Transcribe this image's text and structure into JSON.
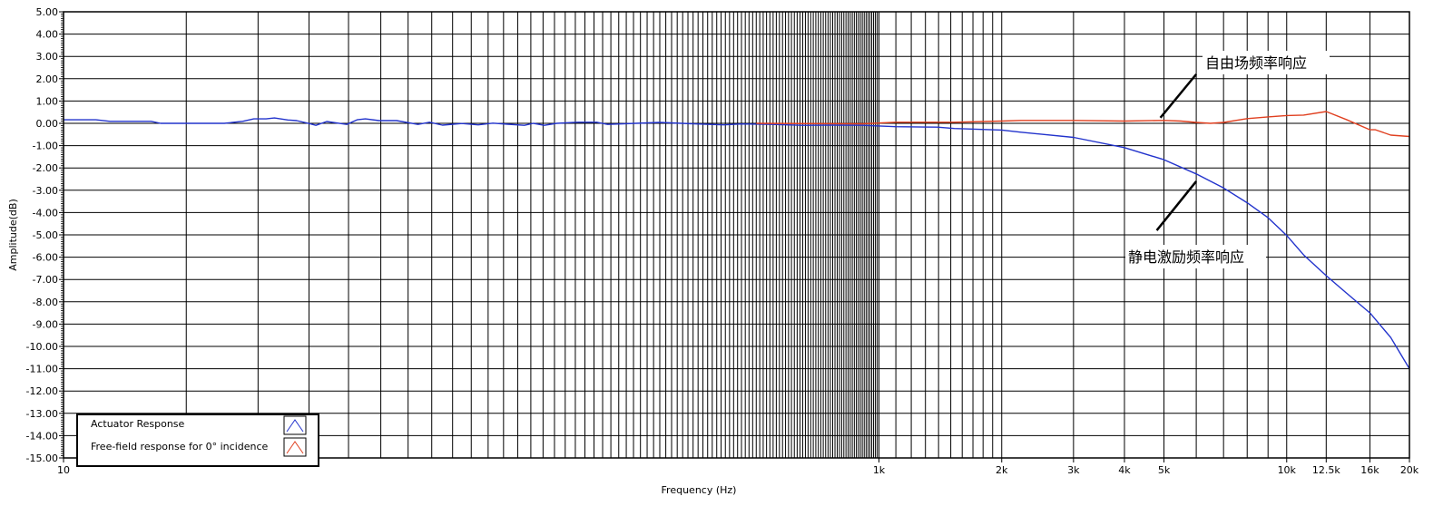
{
  "chart_data": {
    "type": "line",
    "xlabel": "Frequency (Hz)",
    "ylabel": "Amplitude(dB)",
    "x_scale": "log",
    "xlim": [
      10,
      20000
    ],
    "ylim": [
      -15,
      5
    ],
    "grid": true,
    "legend_placement": "bottom-left",
    "x_ticks": [
      {
        "value": 10,
        "label": "10"
      },
      {
        "value": 1000,
        "label": "1k"
      },
      {
        "value": 2000,
        "label": "2k"
      },
      {
        "value": 3000,
        "label": "3k"
      },
      {
        "value": 4000,
        "label": "4k"
      },
      {
        "value": 5000,
        "label": "5k"
      },
      {
        "value": 10000,
        "label": "10k"
      },
      {
        "value": 12500,
        "label": "12.5k"
      },
      {
        "value": 16000,
        "label": "16k"
      },
      {
        "value": 20000,
        "label": "20k"
      }
    ],
    "y_ticks": [
      "5.00",
      "4.00",
      "3.00",
      "2.00",
      "1.00",
      "0.00",
      "-1.00",
      "-2.00",
      "-3.00",
      "-4.00",
      "-5.00",
      "-6.00",
      "-7.00",
      "-8.00",
      "-9.00",
      "-10.00",
      "-11.00",
      "-12.00",
      "-13.00",
      "-14.00",
      "-15.00"
    ],
    "series": [
      {
        "name": "Actuator Response",
        "color": "#2233cc",
        "x": [
          10,
          12,
          13,
          16.4,
          17.3,
          24.8,
          27.5,
          29.3,
          31.4,
          32.9,
          35.5,
          37.3,
          40,
          41.6,
          44.2,
          49.5,
          52.5,
          55,
          59.4,
          65.6,
          74,
          79,
          85,
          95,
          104,
          113,
          123,
          135,
          142,
          151,
          162,
          183,
          203,
          216,
          253,
          290,
          357,
          416,
          460,
          546,
          646,
          767,
          910,
          1100,
          1390,
          1530,
          2000,
          2230,
          3000,
          4000,
          5000,
          6000,
          7000,
          8000,
          9000,
          10000,
          11000,
          12500,
          14000,
          16000,
          18000,
          20000
        ],
        "y": [
          0.16,
          0.16,
          0.09,
          0.09,
          0,
          0,
          0.09,
          0.2,
          0.2,
          0.24,
          0.15,
          0.12,
          -0.01,
          -0.09,
          0.08,
          -0.05,
          0.16,
          0.2,
          0.12,
          0.12,
          -0.05,
          0.05,
          -0.08,
          -0.01,
          -0.07,
          0.01,
          -0.04,
          -0.09,
          0,
          -0.09,
          0,
          0.05,
          0.05,
          -0.05,
          0,
          0.04,
          -0.03,
          -0.07,
          -0.03,
          -0.05,
          -0.09,
          -0.08,
          -0.09,
          -0.15,
          -0.17,
          -0.23,
          -0.3,
          -0.4,
          -0.63,
          -1.09,
          -1.63,
          -2.27,
          -2.9,
          -3.56,
          -4.23,
          -5.03,
          -5.9,
          -6.83,
          -7.6,
          -8.5,
          -9.6,
          -11.0
        ]
      },
      {
        "name": "Free-field response for 0° incidence",
        "color": "#e04020",
        "x": [
          500,
          910,
          1100,
          1530,
          2000,
          2230,
          3000,
          4000,
          5000,
          5500,
          6000,
          6500,
          7000,
          8000,
          9000,
          10000,
          11000,
          12500,
          14000,
          16000,
          16500,
          18000,
          20000
        ],
        "y": [
          0,
          -0.02,
          0.05,
          0.05,
          0.1,
          0.13,
          0.13,
          0.1,
          0.13,
          0.1,
          0.04,
          0,
          0.04,
          0.21,
          0.29,
          0.35,
          0.37,
          0.53,
          0.17,
          -0.29,
          -0.29,
          -0.53,
          -0.59
        ]
      }
    ],
    "x_gridlines": [
      20,
      30,
      40,
      50,
      60,
      70,
      80,
      90,
      100,
      110,
      120,
      130,
      140,
      150,
      160,
      170,
      180,
      190,
      200,
      210,
      220,
      230,
      240,
      250,
      260,
      270,
      280,
      290,
      300,
      310,
      320,
      330,
      340,
      350,
      360,
      370,
      380,
      390,
      400,
      410,
      420,
      430,
      440,
      450,
      460,
      470,
      480,
      490,
      500,
      510,
      520,
      530,
      540,
      550,
      560,
      570,
      580,
      590,
      600,
      610,
      620,
      630,
      640,
      650,
      660,
      670,
      680,
      690,
      700,
      710,
      720,
      730,
      740,
      750,
      760,
      770,
      780,
      790,
      800,
      810,
      820,
      830,
      840,
      850,
      860,
      870,
      880,
      890,
      900,
      910,
      920,
      930,
      940,
      950,
      960,
      970,
      980,
      990,
      1000,
      1100,
      1200,
      1300,
      1400,
      1500,
      1600,
      1700,
      1800,
      1900,
      2000,
      3000,
      4000,
      5000,
      6000,
      7000,
      8000,
      9000,
      10000,
      12500,
      16000,
      20000
    ],
    "annotations": [
      {
        "text": "自由场频率响应",
        "points_to_series": "Free-field response for 0° incidence",
        "arrow_from": [
          6000,
          2.2
        ],
        "arrow_to": [
          4900,
          0.25
        ]
      },
      {
        "text": "静电激励频率响应",
        "points_to_series": "Actuator Response",
        "arrow_from": [
          4800,
          -4.8
        ],
        "arrow_to": [
          6000,
          -2.6
        ]
      }
    ]
  }
}
